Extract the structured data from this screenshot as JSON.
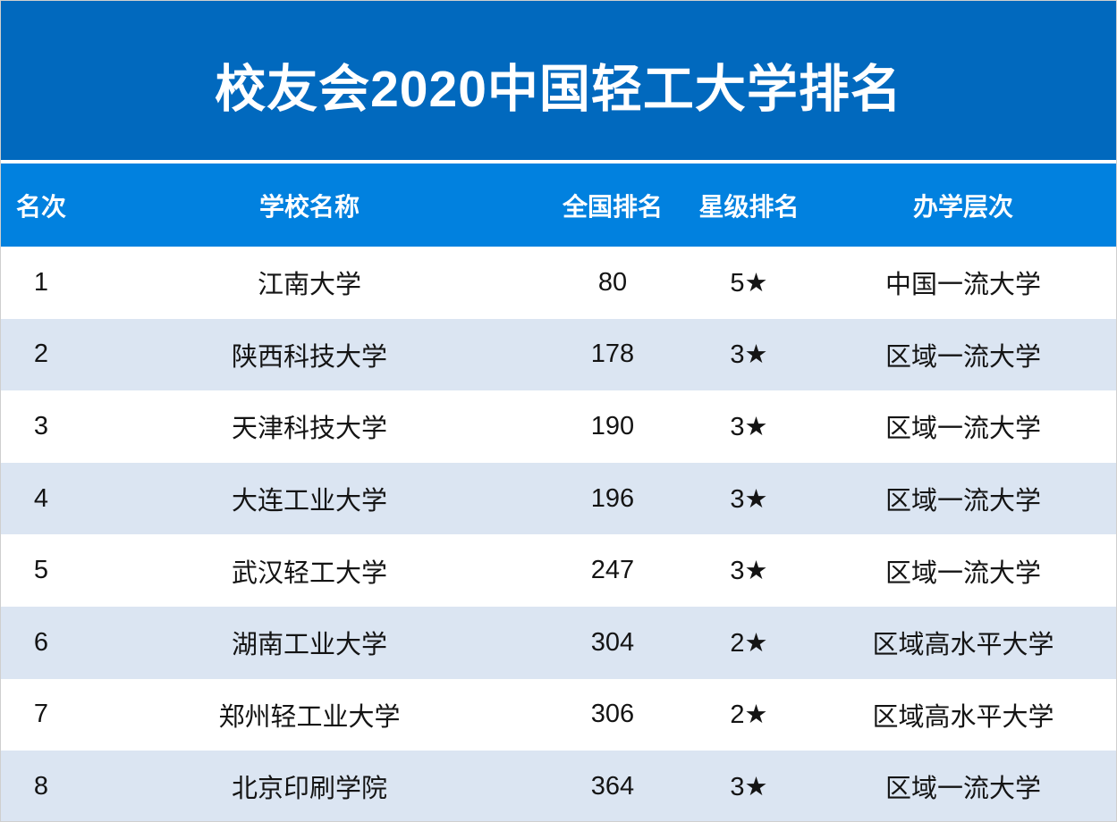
{
  "title": "校友会2020中国轻工大学排名",
  "colors": {
    "banner_bg": "#0169be",
    "header_bg": "#0181df",
    "row_alt_bg": "#dbe5f2",
    "row_bg": "#ffffff",
    "header_text": "#ffffff",
    "body_text": "#141414"
  },
  "table": {
    "columns": [
      {
        "key": "rank",
        "label": "名次"
      },
      {
        "key": "school",
        "label": "学校名称"
      },
      {
        "key": "national_rank",
        "label": "全国排名"
      },
      {
        "key": "star_rating",
        "label": "星级排名"
      },
      {
        "key": "tier",
        "label": "办学层次"
      }
    ],
    "rows": [
      {
        "rank": "1",
        "school": "江南大学",
        "national_rank": "80",
        "star_rating": "5★",
        "tier": "中国一流大学"
      },
      {
        "rank": "2",
        "school": "陕西科技大学",
        "national_rank": "178",
        "star_rating": "3★",
        "tier": "区域一流大学"
      },
      {
        "rank": "3",
        "school": "天津科技大学",
        "national_rank": "190",
        "star_rating": "3★",
        "tier": "区域一流大学"
      },
      {
        "rank": "4",
        "school": "大连工业大学",
        "national_rank": "196",
        "star_rating": "3★",
        "tier": "区域一流大学"
      },
      {
        "rank": "5",
        "school": "武汉轻工大学",
        "national_rank": "247",
        "star_rating": "3★",
        "tier": "区域一流大学"
      },
      {
        "rank": "6",
        "school": "湖南工业大学",
        "national_rank": "304",
        "star_rating": "2★",
        "tier": "区域高水平大学"
      },
      {
        "rank": "7",
        "school": "郑州轻工业大学",
        "national_rank": "306",
        "star_rating": "2★",
        "tier": "区域高水平大学"
      },
      {
        "rank": "8",
        "school": "北京印刷学院",
        "national_rank": "364",
        "star_rating": "3★",
        "tier": "区域一流大学"
      }
    ]
  },
  "chart_data": {
    "type": "table",
    "title": "校友会2020中国轻工大学排名",
    "columns": [
      "名次",
      "学校名称",
      "全国排名",
      "星级排名",
      "办学层次"
    ],
    "rows": [
      [
        "1",
        "江南大学",
        80,
        "5★",
        "中国一流大学"
      ],
      [
        "2",
        "陕西科技大学",
        178,
        "3★",
        "区域一流大学"
      ],
      [
        "3",
        "天津科技大学",
        190,
        "3★",
        "区域一流大学"
      ],
      [
        "4",
        "大连工业大学",
        196,
        "3★",
        "区域一流大学"
      ],
      [
        "5",
        "武汉轻工大学",
        247,
        "3★",
        "区域一流大学"
      ],
      [
        "6",
        "湖南工业大学",
        304,
        "2★",
        "区域高水平大学"
      ],
      [
        "7",
        "郑州轻工业大学",
        306,
        "2★",
        "区域高水平大学"
      ],
      [
        "8",
        "北京印刷学院",
        364,
        "3★",
        "区域一流大学"
      ]
    ]
  }
}
